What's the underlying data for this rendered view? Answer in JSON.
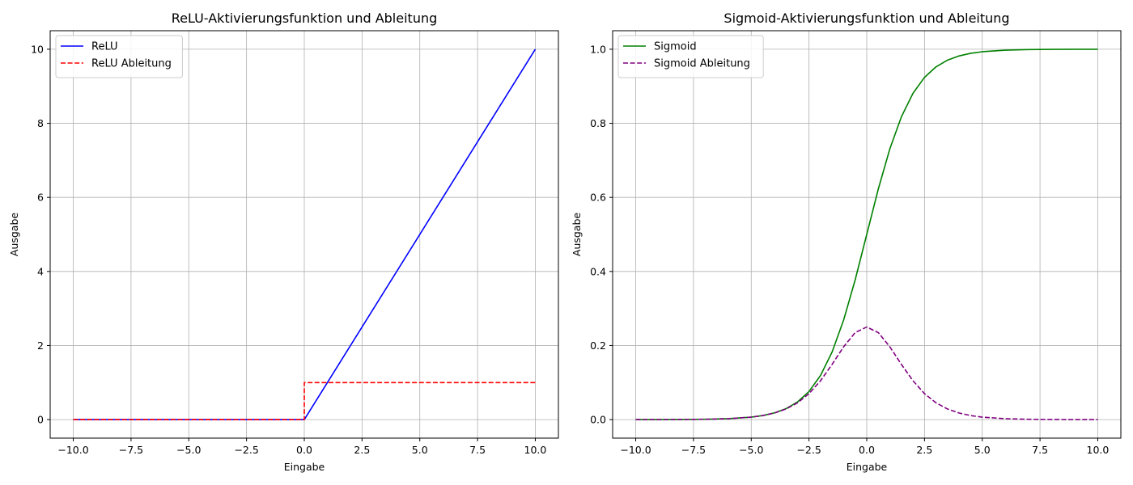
{
  "chart_data": [
    {
      "type": "line",
      "title": "ReLU-Aktivierungsfunktion und Ableitung",
      "xlabel": "Eingabe",
      "ylabel": "Ausgabe",
      "xlim": [
        -11,
        11
      ],
      "ylim": [
        -0.5,
        10.5
      ],
      "xticks": [
        -10.0,
        -7.5,
        -5.0,
        -2.5,
        0.0,
        2.5,
        5.0,
        7.5,
        10.0
      ],
      "xtick_labels": [
        "−10.0",
        "−7.5",
        "−5.0",
        "−2.5",
        "0.0",
        "2.5",
        "5.0",
        "7.5",
        "10.0"
      ],
      "yticks": [
        0,
        2,
        4,
        6,
        8,
        10
      ],
      "ytick_labels": [
        "0",
        "2",
        "4",
        "6",
        "8",
        "10"
      ],
      "grid": true,
      "legend_position": "top-left",
      "series": [
        {
          "name": "ReLU",
          "color": "#0000ff",
          "dash": "solid",
          "x": [
            -10,
            0,
            10
          ],
          "y": [
            0,
            0,
            10
          ]
        },
        {
          "name": "ReLU Ableitung",
          "color": "#ff0000",
          "dash": "dashed",
          "x": [
            -10,
            0,
            0,
            10
          ],
          "y": [
            0,
            0,
            1,
            1
          ]
        }
      ]
    },
    {
      "type": "line",
      "title": "Sigmoid-Aktivierungsfunktion und Ableitung",
      "xlabel": "Eingabe",
      "ylabel": "Ausgabe",
      "xlim": [
        -11,
        11
      ],
      "ylim": [
        -0.05,
        1.05
      ],
      "xticks": [
        -10.0,
        -7.5,
        -5.0,
        -2.5,
        0.0,
        2.5,
        5.0,
        7.5,
        10.0
      ],
      "xtick_labels": [
        "−10.0",
        "−7.5",
        "−5.0",
        "−2.5",
        "0.0",
        "2.5",
        "5.0",
        "7.5",
        "10.0"
      ],
      "yticks": [
        0.0,
        0.2,
        0.4,
        0.6,
        0.8,
        1.0
      ],
      "ytick_labels": [
        "0.0",
        "0.2",
        "0.4",
        "0.6",
        "0.8",
        "1.0"
      ],
      "grid": true,
      "legend_position": "top-left",
      "series": [
        {
          "name": "Sigmoid",
          "color": "#008000",
          "dash": "solid",
          "x": [
            -10,
            -9,
            -8,
            -7,
            -6,
            -5,
            -4.5,
            -4,
            -3.5,
            -3,
            -2.5,
            -2,
            -1.5,
            -1,
            -0.5,
            0,
            0.5,
            1,
            1.5,
            2,
            2.5,
            3,
            3.5,
            4,
            4.5,
            5,
            6,
            7,
            8,
            9,
            10
          ],
          "y": [
            0.0,
            0.0001,
            0.0003,
            0.0009,
            0.0025,
            0.0067,
            0.011,
            0.018,
            0.0293,
            0.0474,
            0.0759,
            0.1192,
            0.1824,
            0.2689,
            0.3775,
            0.5,
            0.6225,
            0.7311,
            0.8176,
            0.8808,
            0.9241,
            0.9526,
            0.9707,
            0.982,
            0.989,
            0.9933,
            0.9975,
            0.9991,
            0.9997,
            0.9999,
            1.0
          ]
        },
        {
          "name": "Sigmoid Ableitung",
          "color": "#800080",
          "dash": "dashed",
          "x": [
            -10,
            -9,
            -8,
            -7,
            -6,
            -5,
            -4.5,
            -4,
            -3.5,
            -3,
            -2.5,
            -2,
            -1.5,
            -1,
            -0.5,
            0,
            0.5,
            1,
            1.5,
            2,
            2.5,
            3,
            3.5,
            4,
            4.5,
            5,
            6,
            7,
            8,
            9,
            10
          ],
          "y": [
            0.0,
            0.0001,
            0.0003,
            0.0009,
            0.0025,
            0.0066,
            0.0109,
            0.0177,
            0.0285,
            0.0452,
            0.0701,
            0.105,
            0.1491,
            0.1966,
            0.235,
            0.25,
            0.235,
            0.1966,
            0.1491,
            0.105,
            0.0701,
            0.0452,
            0.0285,
            0.0177,
            0.0109,
            0.0066,
            0.0025,
            0.0009,
            0.0003,
            0.0001,
            0.0
          ]
        }
      ]
    }
  ]
}
